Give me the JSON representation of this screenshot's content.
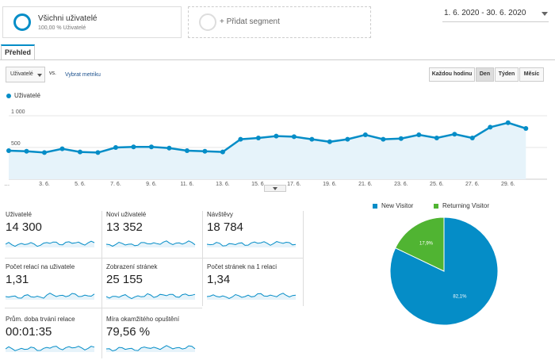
{
  "segments": {
    "active": {
      "title": "Všichni uživatelé",
      "subtitle": "100,00 % Uživatelé"
    },
    "add_label": "+ Přidat segment"
  },
  "date_range": "1. 6. 2020 - 30. 6. 2020",
  "tab_label": "Přehled",
  "controls": {
    "metric_value": "Uživatelé",
    "vs_label": "vs.",
    "pick_metric": "Vybrat metriku",
    "granularity": [
      {
        "label": "Každou hodinu",
        "active": false
      },
      {
        "label": "Den",
        "active": true
      },
      {
        "label": "Týden",
        "active": false
      },
      {
        "label": "Měsíc",
        "active": false
      }
    ]
  },
  "series_legend": "Uživatelé",
  "colors": {
    "accent": "#058dc7",
    "returning": "#50b432"
  },
  "chart_data": [
    {
      "type": "area",
      "ylim": [
        0,
        1200
      ],
      "y_ticks": [
        "500",
        "1 000"
      ],
      "y_tick_values": [
        500,
        1000
      ],
      "x_ticks": [
        "…",
        "3. 6.",
        "5. 6.",
        "7. 6.",
        "9. 6.",
        "11. 6.",
        "13. 6.",
        "15. 6.",
        "17. 6.",
        "19. 6.",
        "21. 6.",
        "23. 6.",
        "25. 6.",
        "27. 6.",
        "29. 6."
      ],
      "x_tick_days": [
        0.9,
        3,
        5,
        7,
        9,
        11,
        13,
        15,
        17,
        19,
        21,
        23,
        25,
        27,
        29
      ],
      "series": [
        {
          "x": [
            1,
            2,
            3,
            4,
            5,
            6,
            7,
            8,
            9,
            10,
            11,
            12,
            13,
            14,
            15,
            16,
            17,
            18,
            19,
            20,
            21,
            22,
            23,
            24,
            25,
            26,
            27,
            28,
            29,
            30
          ],
          "values": [
            450,
            440,
            420,
            480,
            430,
            420,
            500,
            510,
            510,
            490,
            450,
            440,
            430,
            630,
            650,
            680,
            670,
            630,
            590,
            630,
            700,
            630,
            640,
            700,
            650,
            710,
            650,
            820,
            890,
            800
          ]
        }
      ]
    },
    {
      "type": "pie",
      "legend": [
        "New Visitor",
        "Returning Visitor"
      ],
      "values": [
        82.1,
        17.9
      ],
      "labels": [
        "82,1%",
        "17,9%"
      ]
    }
  ],
  "metric_cards": [
    {
      "label": "Uživatelé",
      "value": "14 300"
    },
    {
      "label": "Noví uživatelé",
      "value": "13 352"
    },
    {
      "label": "Návštěvy",
      "value": "18 784"
    },
    {
      "label": "Počet relací na uživatele",
      "value": "1,31"
    },
    {
      "label": "Zobrazení stránek",
      "value": "25 155"
    },
    {
      "label": "Počet stránek na 1 relaci",
      "value": "1,34"
    },
    {
      "label": "Prům. doba trvání relace",
      "value": "00:01:35"
    },
    {
      "label": "Míra okamžitého opuštění",
      "value": "79,56 %"
    }
  ]
}
